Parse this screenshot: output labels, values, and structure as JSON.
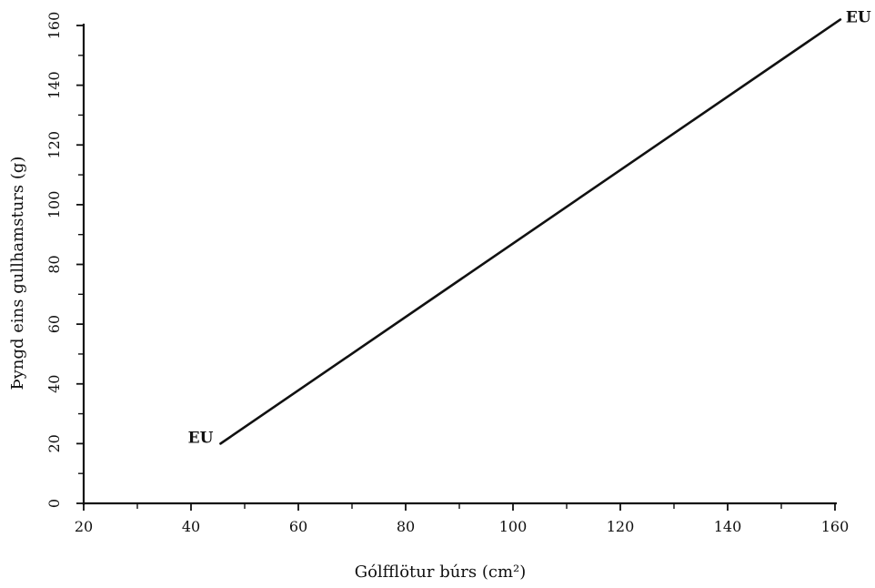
{
  "chart_data": {
    "type": "line",
    "xlabel": "Gólfflötur búrs (cm²)",
    "ylabel": "Þyngd eins gullhamsturs (g)",
    "xlim": [
      20,
      160
    ],
    "ylim": [
      0,
      160
    ],
    "x_ticks": [
      "20",
      "40",
      "60",
      "80",
      "100",
      "120",
      "140",
      "160"
    ],
    "y_ticks": [
      "0",
      "20",
      "40",
      "60",
      "80",
      "100",
      "120",
      "140",
      "160"
    ],
    "grid": false,
    "series": [
      {
        "x": [
          45.5,
          161
        ],
        "y": [
          20,
          162
        ]
      }
    ],
    "annotations": [
      {
        "text": "EU",
        "x": 45.5,
        "y": 20
      },
      {
        "text": "EU",
        "x": 161,
        "y": 162
      }
    ]
  }
}
